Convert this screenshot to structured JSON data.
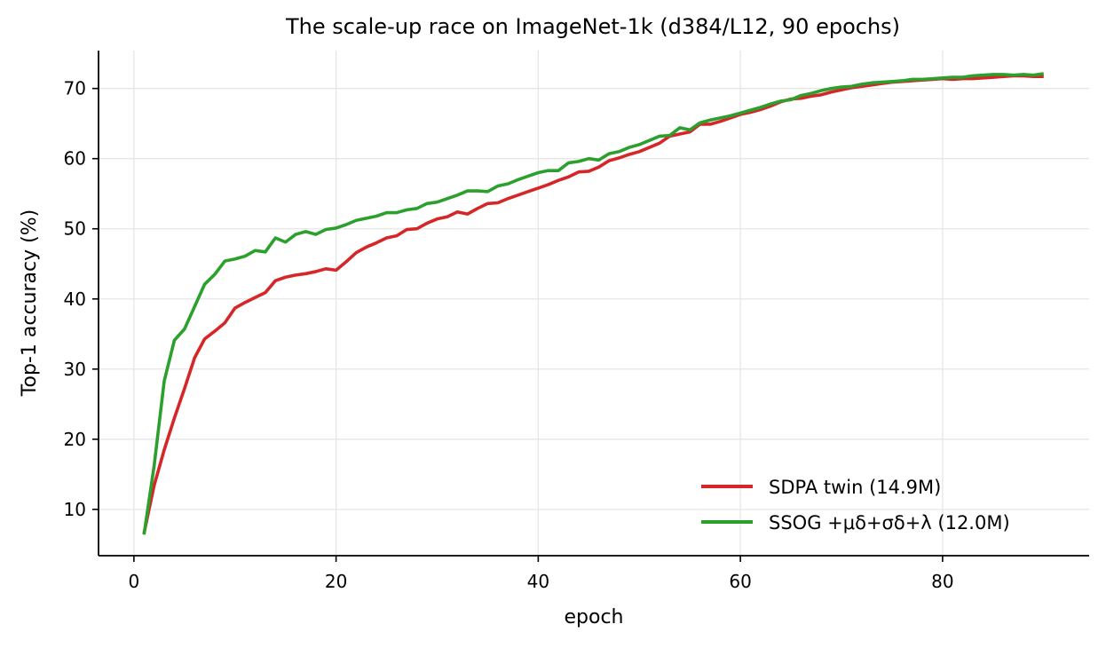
{
  "chart_data": {
    "type": "line",
    "title": "The scale-up race on ImageNet-1k (d384/L12, 90 epochs)",
    "xlabel": "epoch",
    "ylabel": "Top-1 accuracy (%)",
    "xlim": [
      -3.5,
      94.5
    ],
    "ylim": [
      3.4,
      75.4
    ],
    "xticks": [
      0,
      20,
      40,
      60,
      80
    ],
    "yticks": [
      10,
      20,
      30,
      40,
      50,
      60,
      70
    ],
    "grid": true,
    "legend_position": "lower-right",
    "x": [
      1,
      2,
      3,
      4,
      5,
      6,
      7,
      8,
      9,
      10,
      11,
      12,
      13,
      14,
      15,
      16,
      17,
      18,
      19,
      20,
      21,
      22,
      23,
      24,
      25,
      26,
      27,
      28,
      29,
      30,
      31,
      32,
      33,
      34,
      35,
      36,
      37,
      38,
      39,
      40,
      41,
      42,
      43,
      44,
      45,
      46,
      47,
      48,
      49,
      50,
      51,
      52,
      53,
      54,
      55,
      56,
      57,
      58,
      59,
      60,
      61,
      62,
      63,
      64,
      65,
      66,
      67,
      68,
      69,
      70,
      71,
      72,
      73,
      74,
      75,
      76,
      77,
      78,
      79,
      80,
      81,
      82,
      83,
      84,
      85,
      86,
      87,
      88,
      89,
      90
    ],
    "series": [
      {
        "name": "SDPA twin (14.9M)",
        "color": "#d62728",
        "values": [
          6.6,
          13.4,
          18.5,
          23.0,
          27.2,
          31.6,
          34.3,
          35.4,
          36.6,
          38.7,
          39.5,
          40.2,
          40.9,
          42.6,
          43.1,
          43.4,
          43.6,
          43.9,
          44.3,
          44.1,
          45.3,
          46.6,
          47.4,
          48.0,
          48.7,
          49.0,
          49.9,
          50.0,
          50.8,
          51.4,
          51.7,
          52.4,
          52.1,
          52.9,
          53.6,
          53.7,
          54.3,
          54.8,
          55.3,
          55.8,
          56.3,
          56.9,
          57.4,
          58.1,
          58.2,
          58.8,
          59.7,
          60.1,
          60.6,
          61.0,
          61.6,
          62.2,
          63.2,
          63.5,
          63.8,
          64.9,
          64.9,
          65.3,
          65.8,
          66.3,
          66.6,
          67.0,
          67.5,
          68.1,
          68.5,
          68.6,
          68.9,
          69.1,
          69.5,
          69.8,
          70.1,
          70.3,
          70.5,
          70.7,
          70.9,
          71.0,
          71.1,
          71.2,
          71.3,
          71.4,
          71.3,
          71.4,
          71.4,
          71.5,
          71.6,
          71.7,
          71.8,
          71.8,
          71.7,
          71.7
        ]
      },
      {
        "name": "SSOG +μδ+σδ+λ (12.0M)",
        "color": "#2ca02c",
        "values": [
          6.4,
          16.2,
          28.3,
          34.1,
          35.7,
          38.9,
          42.1,
          43.5,
          45.4,
          45.7,
          46.1,
          46.9,
          46.7,
          48.7,
          48.1,
          49.2,
          49.6,
          49.2,
          49.9,
          50.1,
          50.6,
          51.2,
          51.5,
          51.8,
          52.3,
          52.3,
          52.7,
          52.9,
          53.6,
          53.8,
          54.3,
          54.8,
          55.4,
          55.4,
          55.3,
          56.1,
          56.4,
          57.0,
          57.5,
          58.0,
          58.3,
          58.3,
          59.4,
          59.6,
          60.0,
          59.8,
          60.7,
          61.0,
          61.6,
          62.0,
          62.6,
          63.2,
          63.3,
          64.4,
          64.1,
          65.1,
          65.5,
          65.8,
          66.1,
          66.5,
          66.9,
          67.3,
          67.8,
          68.2,
          68.4,
          69.0,
          69.3,
          69.7,
          70.0,
          70.2,
          70.3,
          70.6,
          70.8,
          70.9,
          71.0,
          71.1,
          71.3,
          71.3,
          71.4,
          71.5,
          71.6,
          71.6,
          71.8,
          71.9,
          72.0,
          72.0,
          71.9,
          72.0,
          71.9,
          72.1
        ]
      }
    ]
  }
}
